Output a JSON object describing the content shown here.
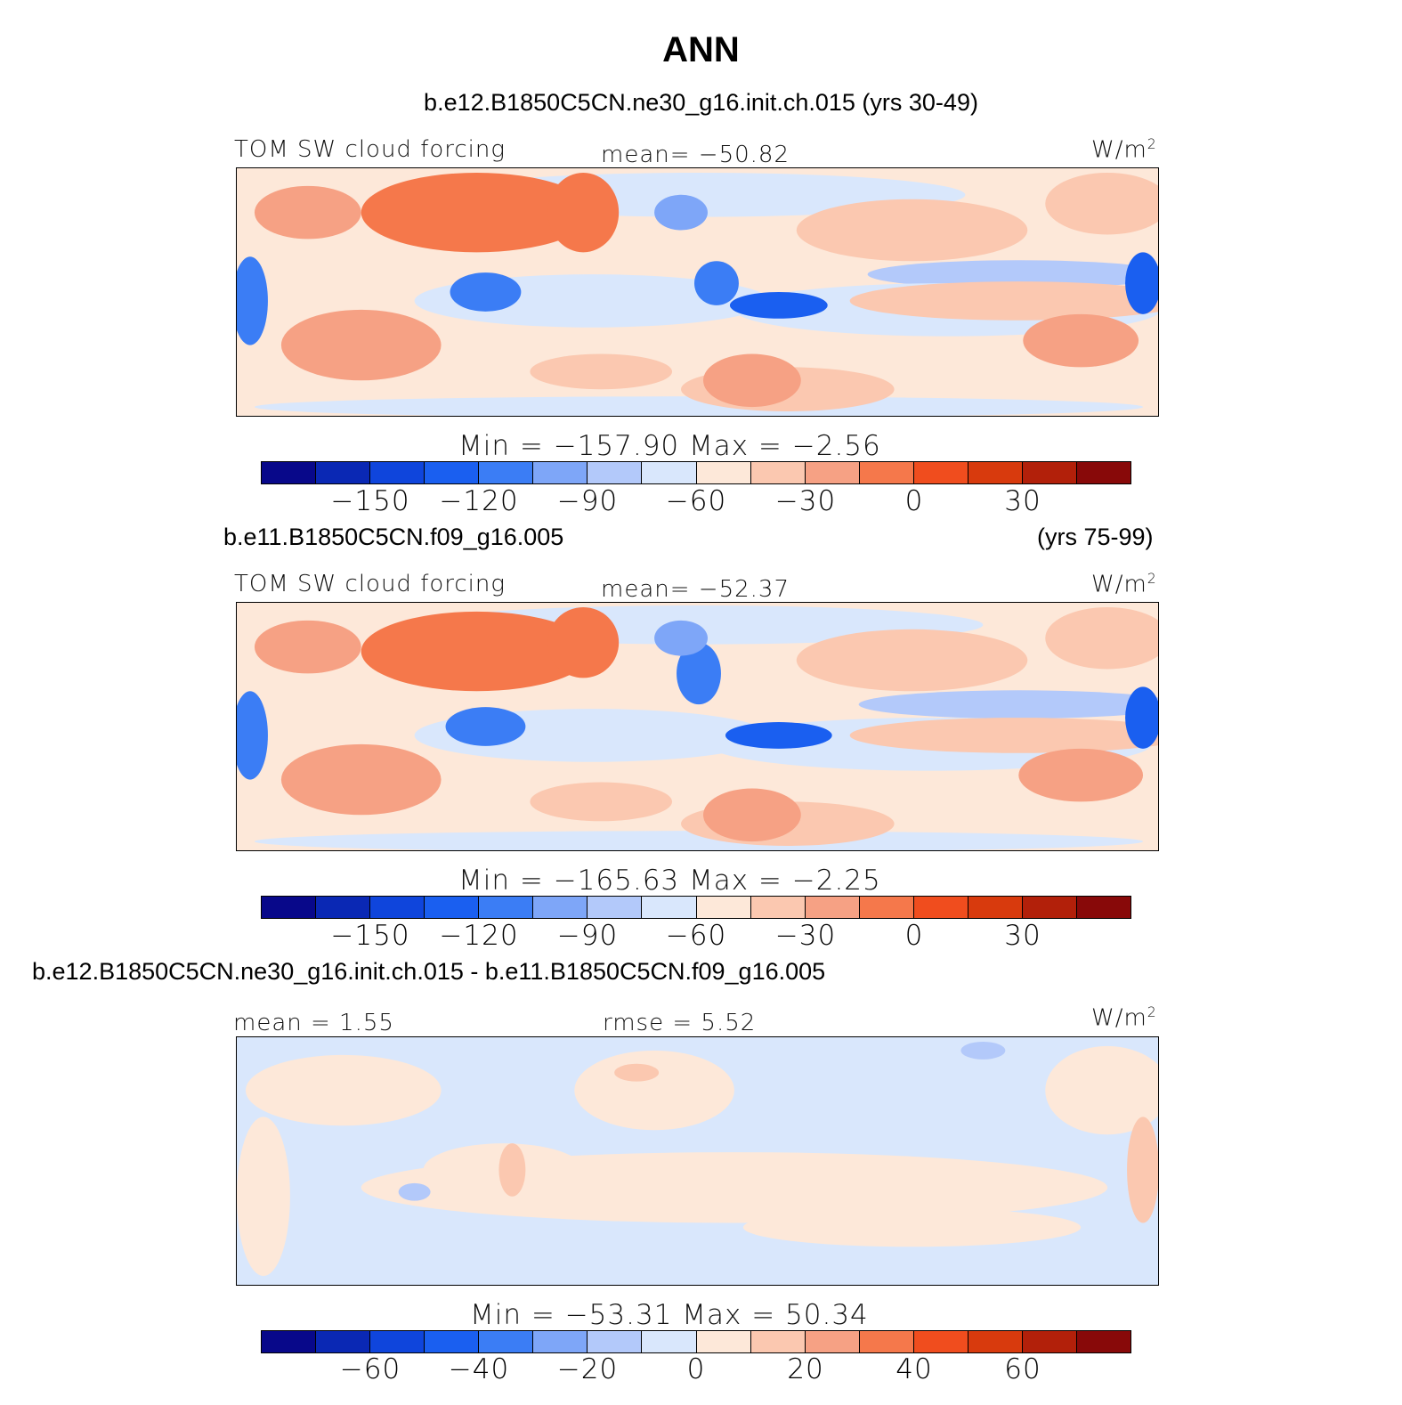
{
  "title": "ANN",
  "units_base": "W/m",
  "units_exp": "2",
  "colors": [
    "#08088a",
    "#0a28b4",
    "#0f45dc",
    "#1a5ff0",
    "#3b7df5",
    "#7ea6f8",
    "#b3c9fa",
    "#d9e7fc",
    "#fde8d9",
    "#fbc8b0",
    "#f6a184",
    "#f5784b",
    "#f04d1e",
    "#d83a0d",
    "#b2200a",
    "#880909"
  ],
  "panels": [
    {
      "case_title": "b.e12.B1850C5CN.ne30_g16.init.ch.015 (yrs 30-49)",
      "variable": "TOM SW cloud forcing",
      "stat": "mean= −50.82",
      "minmax": "Min = −157.90 Max = −2.56",
      "ticks": [
        "−150",
        "−120",
        "−90",
        "−60",
        "−30",
        "0",
        "30"
      ]
    },
    {
      "case_title": "b.e11.B1850C5CN.f09_g16.005",
      "case_years": "(yrs 75-99)",
      "variable": "TOM SW cloud forcing",
      "stat": "mean= −52.37",
      "minmax": "Min = −165.63 Max = −2.25",
      "ticks": [
        "−150",
        "−120",
        "−90",
        "−60",
        "−30",
        "0",
        "30"
      ]
    },
    {
      "case_title": "b.e12.B1850C5CN.ne30_g16.init.ch.015 - b.e11.B1850C5CN.f09_g16.005",
      "mean_label": "mean = 1.55",
      "rmse_label": "rmse = 5.52",
      "minmax": "Min = −53.31 Max = 50.34",
      "ticks": [
        "−60",
        "−40",
        "−20",
        "0",
        "20",
        "40",
        "60"
      ]
    }
  ]
}
